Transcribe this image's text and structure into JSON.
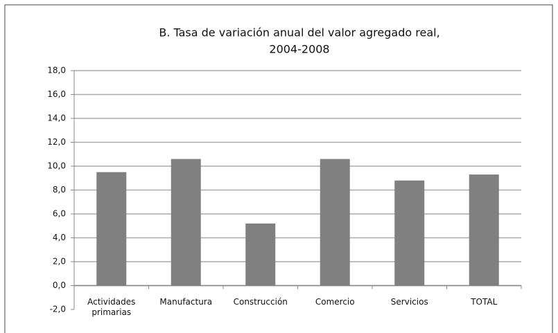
{
  "chart_data": {
    "type": "bar",
    "title": [
      "B. Tasa de variación anual del valor agregado real,",
      "2004-2008"
    ],
    "categories": [
      "Actividades primarias",
      "Manufactura",
      "Construcción",
      "Comercio",
      "Servicios",
      "TOTAL"
    ],
    "values": [
      9.5,
      10.6,
      5.2,
      10.6,
      8.8,
      9.3
    ],
    "color": "#808080",
    "ylim": [
      -2,
      18
    ],
    "yticks": [
      {
        "value": -2,
        "label": "-2,0"
      },
      {
        "value": 0,
        "label": "0,0"
      },
      {
        "value": 2,
        "label": "2,0"
      },
      {
        "value": 4,
        "label": "4,0"
      },
      {
        "value": 6,
        "label": "6,0"
      },
      {
        "value": 8,
        "label": "8,0"
      },
      {
        "value": 10,
        "label": "10,0"
      },
      {
        "value": 12,
        "label": "12,0"
      },
      {
        "value": 14,
        "label": "14,0"
      },
      {
        "value": 16,
        "label": "16,0"
      },
      {
        "value": 18,
        "label": "18,0"
      }
    ],
    "grid": true
  }
}
